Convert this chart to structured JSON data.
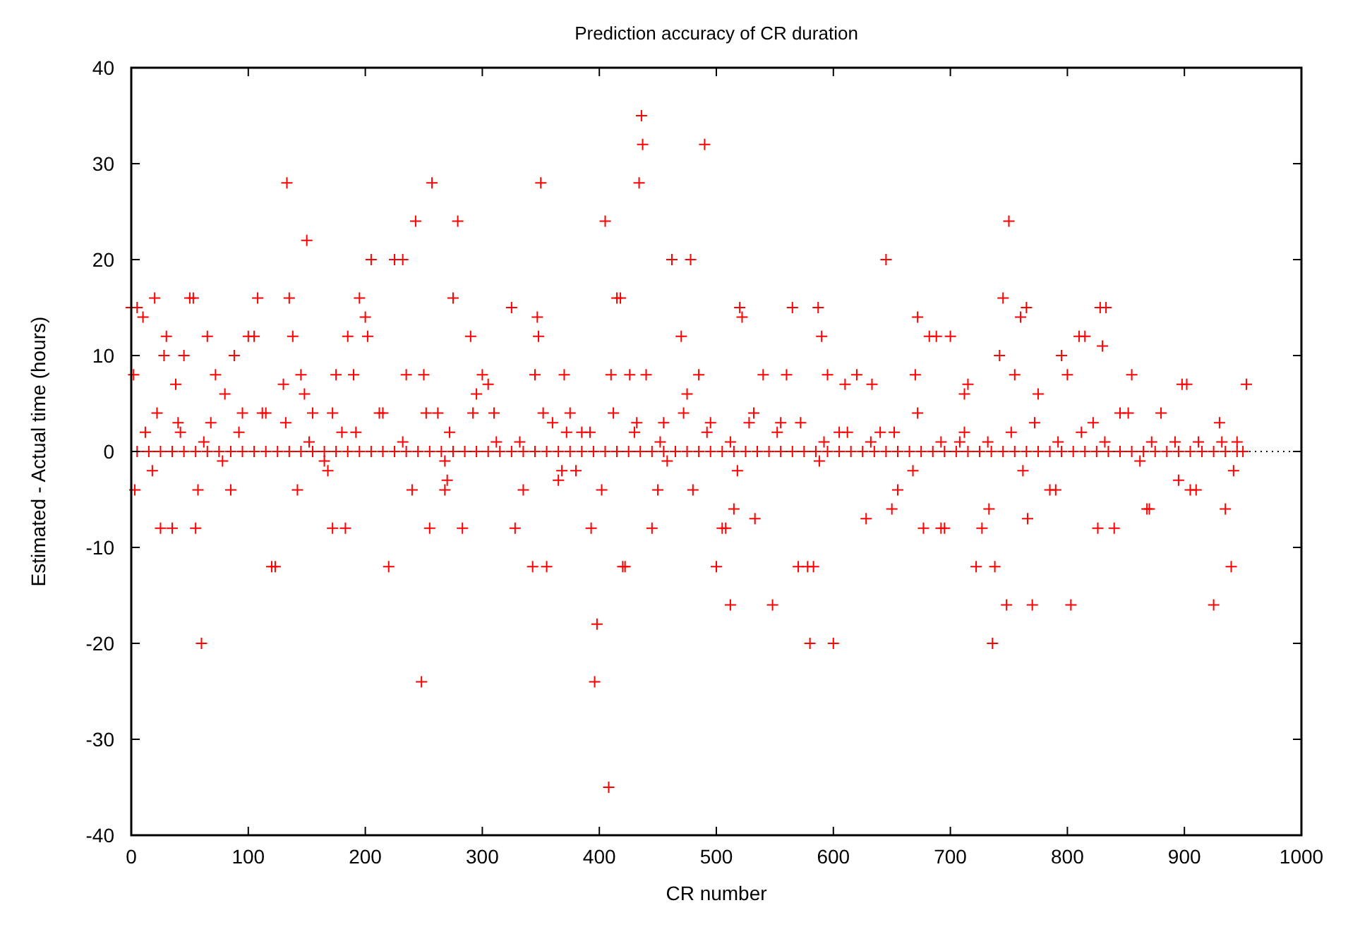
{
  "chart_data": {
    "type": "scatter",
    "title": "Prediction accuracy of CR duration",
    "xlabel": "CR number",
    "ylabel": "Estimated - Actual time (hours)",
    "xlim": [
      0,
      1000
    ],
    "xticks": [
      0,
      100,
      200,
      300,
      400,
      500,
      600,
      700,
      800,
      900,
      1000
    ],
    "ylim": [
      -40,
      40
    ],
    "yticks": [
      -40,
      -30,
      -20,
      -10,
      0,
      10,
      20,
      30,
      40
    ],
    "grid": false,
    "marker": "cross",
    "color": "#ff0000",
    "ref_lines": [
      {
        "axis": "y",
        "value": 0,
        "line_style": "dotted",
        "color": "#000000"
      }
    ],
    "x": [
      0,
      2,
      5,
      10,
      3,
      20,
      25,
      28,
      30,
      35,
      38,
      40,
      45,
      50,
      53,
      55,
      57,
      60,
      65,
      68,
      72,
      80,
      85,
      88,
      95,
      100,
      105,
      108,
      115,
      120,
      123,
      130,
      133,
      135,
      138,
      142,
      145,
      148,
      150,
      155,
      165,
      172,
      175,
      180,
      183,
      185,
      190,
      195,
      200,
      202,
      205,
      215,
      220,
      225,
      232,
      235,
      240,
      243,
      248,
      250,
      255,
      257,
      262,
      268,
      270,
      275,
      279,
      283,
      290,
      295,
      300,
      305,
      310,
      325,
      328,
      335,
      343,
      345,
      347,
      348,
      350,
      355,
      360,
      365,
      370,
      375,
      380,
      385,
      393,
      396,
      398,
      402,
      405,
      408,
      410,
      415,
      418,
      420,
      422,
      426,
      430,
      434,
      436,
      437,
      440,
      445,
      450,
      455,
      462,
      470,
      475,
      478,
      480,
      485,
      490,
      495,
      500,
      505,
      508,
      512,
      515,
      520,
      522,
      528,
      533,
      540,
      548,
      555,
      560,
      565,
      570,
      578,
      580,
      583,
      587,
      590,
      595,
      600,
      605,
      610,
      620,
      628,
      633,
      640,
      645,
      650,
      655,
      670,
      672,
      677,
      682,
      688,
      692,
      695,
      700,
      708,
      712,
      715,
      722,
      727,
      733,
      736,
      738,
      742,
      745,
      748,
      750,
      755,
      760,
      765,
      766,
      770,
      775,
      785,
      790,
      795,
      800,
      803,
      810,
      815,
      822,
      826,
      828,
      830,
      833,
      840,
      845,
      855,
      868,
      870,
      880,
      895,
      898,
      902,
      905,
      910,
      925,
      930,
      935,
      940,
      942,
      945,
      950,
      953,
      5,
      15,
      25,
      35,
      45,
      55,
      65,
      75,
      85,
      95,
      105,
      115,
      125,
      135,
      145,
      155,
      165,
      175,
      185,
      195,
      205,
      215,
      225,
      235,
      245,
      255,
      265,
      275,
      285,
      295,
      305,
      315,
      325,
      335,
      345,
      355,
      365,
      375,
      385,
      395,
      405,
      415,
      425,
      435,
      445,
      455,
      465,
      475,
      485,
      495,
      505,
      515,
      525,
      535,
      545,
      555,
      565,
      575,
      585,
      595,
      605,
      615,
      625,
      635,
      645,
      655,
      665,
      675,
      685,
      695,
      705,
      715,
      725,
      735,
      745,
      755,
      765,
      775,
      785,
      795,
      805,
      815,
      825,
      835,
      845,
      855,
      865,
      875,
      885,
      895,
      905,
      915,
      925,
      935,
      945,
      12,
      22,
      42,
      62,
      92,
      112,
      132,
      152,
      172,
      192,
      212,
      232,
      252,
      272,
      292,
      312,
      332,
      352,
      372,
      392,
      412,
      432,
      452,
      472,
      492,
      512,
      532,
      552,
      572,
      592,
      612,
      632,
      652,
      672,
      692,
      712,
      732,
      752,
      772,
      792,
      812,
      832,
      852,
      872,
      892,
      912,
      932,
      18,
      78,
      168,
      268,
      368,
      458,
      518,
      588,
      668,
      762,
      862
    ],
    "values": [
      15,
      8,
      15,
      14,
      -4,
      16,
      -8,
      10,
      12,
      -8,
      7,
      3,
      10,
      16,
      16,
      -8,
      -4,
      -20,
      12,
      3,
      8,
      6,
      -4,
      10,
      4,
      12,
      12,
      16,
      4,
      -12,
      -12,
      7,
      28,
      16,
      12,
      -4,
      8,
      6,
      22,
      4,
      -1,
      -8,
      8,
      2,
      -8,
      12,
      8,
      16,
      14,
      12,
      20,
      4,
      -12,
      20,
      20,
      8,
      -4,
      24,
      -24,
      8,
      -8,
      28,
      4,
      -4,
      -3,
      16,
      24,
      -8,
      12,
      6,
      8,
      7,
      4,
      15,
      -8,
      -4,
      -12,
      8,
      14,
      12,
      28,
      -12,
      3,
      -3,
      8,
      4,
      -2,
      2,
      -8,
      -24,
      -18,
      -4,
      24,
      -35,
      8,
      16,
      16,
      -12,
      -12,
      8,
      2,
      28,
      35,
      32,
      8,
      -8,
      -4,
      3,
      20,
      12,
      6,
      20,
      -4,
      8,
      32,
      3,
      -12,
      -8,
      -8,
      -16,
      -6,
      15,
      14,
      3,
      -7,
      8,
      -16,
      3,
      8,
      15,
      -12,
      -12,
      -20,
      -12,
      15,
      12,
      8,
      -20,
      2,
      7,
      8,
      -7,
      7,
      2,
      20,
      -6,
      -4,
      8,
      14,
      -8,
      12,
      12,
      -8,
      -8,
      12,
      1,
      6,
      7,
      -12,
      -8,
      -6,
      -20,
      -12,
      10,
      16,
      -16,
      24,
      8,
      14,
      15,
      -7,
      -16,
      6,
      -4,
      -4,
      10,
      8,
      -16,
      12,
      12,
      3,
      -8,
      15,
      11,
      15,
      -8,
      4,
      8,
      -6,
      -6,
      4,
      -3,
      7,
      7,
      -4,
      -4,
      -16,
      3,
      -6,
      -12,
      -2,
      1,
      0,
      7,
      0,
      0,
      0,
      0,
      0,
      0,
      0,
      0,
      0,
      0,
      0,
      0,
      0,
      0,
      0,
      0,
      0,
      0,
      0,
      0,
      0,
      0,
      0,
      0,
      0,
      0,
      0,
      0,
      0,
      0,
      0,
      0,
      0,
      0,
      0,
      0,
      0,
      0,
      0,
      0,
      0,
      0,
      0,
      0,
      0,
      0,
      0,
      0,
      0,
      0,
      0,
      0,
      0,
      0,
      0,
      0,
      0,
      0,
      0,
      0,
      0,
      0,
      0,
      0,
      0,
      0,
      0,
      0,
      0,
      0,
      0,
      0,
      0,
      0,
      0,
      0,
      0,
      0,
      0,
      0,
      0,
      0,
      0,
      0,
      0,
      0,
      0,
      0,
      0,
      0,
      0,
      0,
      0,
      0,
      0,
      2,
      4,
      2,
      1,
      2,
      4,
      3,
      1,
      4,
      2,
      4,
      1,
      4,
      2,
      4,
      1,
      1,
      4,
      2,
      2,
      4,
      3,
      1,
      4,
      2,
      1,
      4,
      2,
      3,
      1,
      2,
      1,
      2,
      4,
      1,
      2,
      1,
      2,
      3,
      1,
      2,
      1,
      4,
      1,
      1,
      1,
      1,
      -2,
      -1,
      -2,
      -1,
      -2,
      -1,
      -2,
      -1,
      -2,
      -2,
      -1
    ]
  }
}
